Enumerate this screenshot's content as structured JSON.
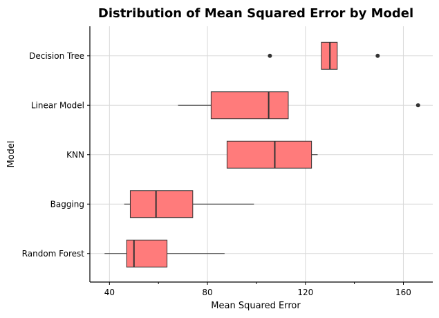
{
  "chart_data": {
    "type": "boxplot",
    "title": "Distribution of Mean Squared Error by Model",
    "xlabel": "Mean Squared Error",
    "ylabel": "Model",
    "xlim": [
      32,
      172
    ],
    "xticks": [
      40,
      80,
      120,
      160
    ],
    "minor_xticks": [
      60,
      100,
      140
    ],
    "grid": true,
    "box_color": "#ff7b7b",
    "line_color": "#333333",
    "categories": [
      "Decision Tree",
      "Linear Model",
      "KNN",
      "Bagging",
      "Random Forest"
    ],
    "boxes": [
      {
        "name": "Decision Tree",
        "whisker_low": 126.5,
        "q1": 126.5,
        "median": 130,
        "q3": 133,
        "whisker_high": 133,
        "outliers": [
          105.5,
          149.5
        ]
      },
      {
        "name": "Linear Model",
        "whisker_low": 68,
        "q1": 81.5,
        "median": 105,
        "q3": 113,
        "whisker_high": 113,
        "outliers": [
          166
        ]
      },
      {
        "name": "KNN",
        "whisker_low": 88,
        "q1": 88,
        "median": 107.5,
        "q3": 122.5,
        "whisker_high": 125,
        "outliers": []
      },
      {
        "name": "Bagging",
        "whisker_low": 46,
        "q1": 48.5,
        "median": 59,
        "q3": 74,
        "whisker_high": 99,
        "outliers": []
      },
      {
        "name": "Random Forest",
        "whisker_low": 38,
        "q1": 47,
        "median": 50,
        "q3": 63.5,
        "whisker_high": 87,
        "outliers": []
      }
    ]
  }
}
